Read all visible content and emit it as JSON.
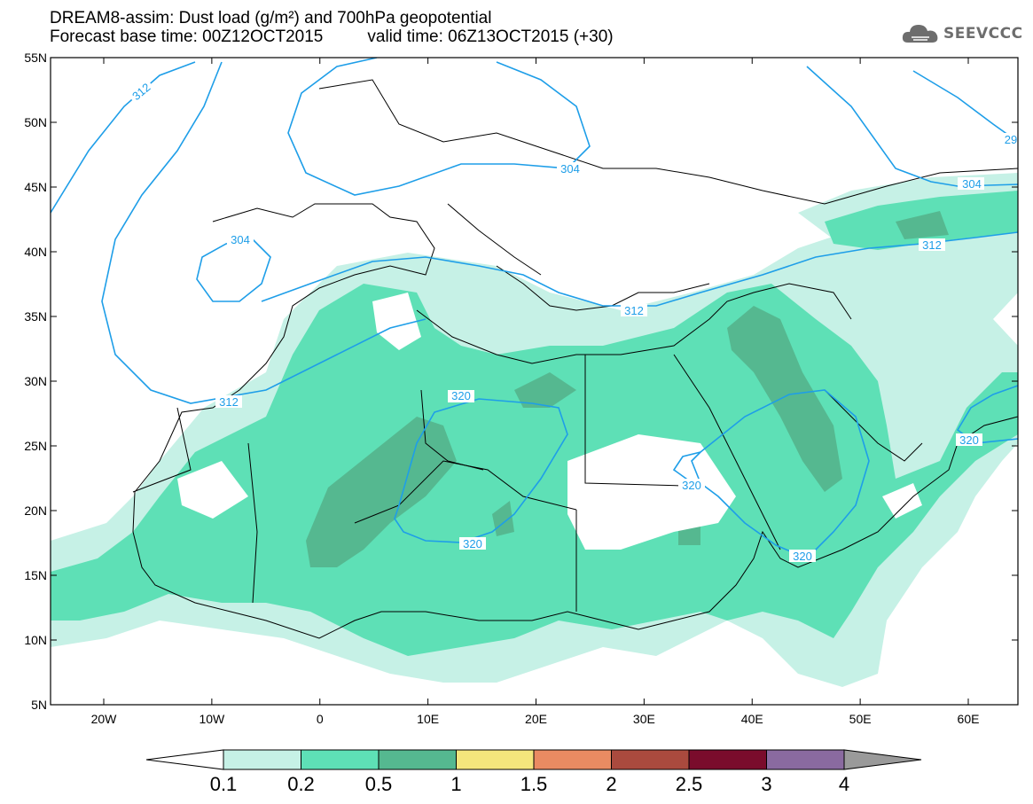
{
  "header": {
    "title": "DREAM8-assim: Dust load (g/m²) and 700hPa geopotential",
    "base_time": "Forecast base time: 00Z12OCT2015",
    "valid_time": "valid time: 06Z13OCT2015 (+30)"
  },
  "logo": {
    "text": "SEEVCCC",
    "icon": "cloud-icon"
  },
  "map": {
    "lat_labels": [
      "55N",
      "50N",
      "45N",
      "40N",
      "35N",
      "30N",
      "25N",
      "20N",
      "15N",
      "10N",
      "5N"
    ],
    "lon_labels": [
      "20W",
      "10W",
      "0",
      "10E",
      "20E",
      "30E",
      "40E",
      "50E",
      "60E"
    ]
  },
  "contour_labels": [
    "312",
    "304",
    "304",
    "304",
    "312",
    "312",
    "312",
    "320",
    "320",
    "320",
    "320",
    "320",
    "29",
    "304",
    "312"
  ],
  "legend": {
    "breaks": [
      "0.1",
      "0.2",
      "0.5",
      "1",
      "1.5",
      "2",
      "2.5",
      "3",
      "4"
    ],
    "colors": [
      "#c6f1e6",
      "#5ee0b6",
      "#55b890",
      "#f4e67c",
      "#e98b62",
      "#aa4a3e",
      "#7a0c2c",
      "#8a6aa0",
      "#9a9a9a"
    ],
    "below_color": "#ffffff"
  },
  "colors": {
    "contour": "#1e9ee8",
    "dust_light": "#c6f1e6",
    "dust_mid": "#5ee0b6",
    "dust_dark": "#55b890"
  }
}
